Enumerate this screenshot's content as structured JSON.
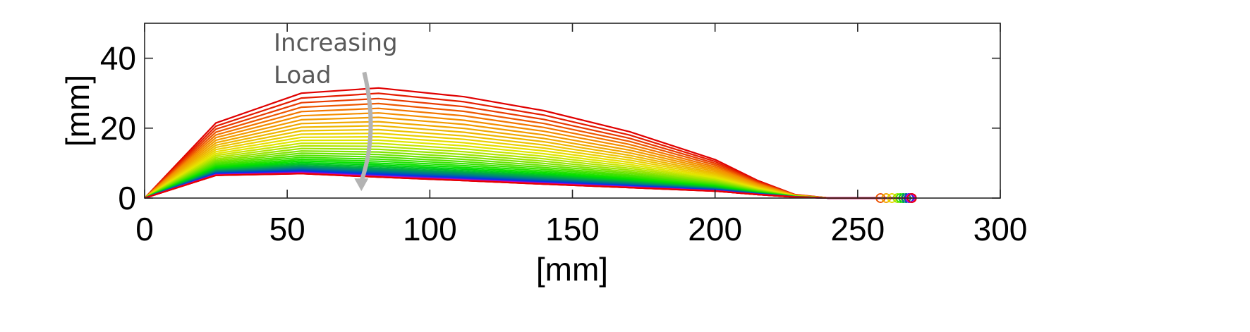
{
  "chart_data": {
    "type": "line",
    "xlabel": "[mm]",
    "ylabel": "[mm]",
    "xlim": [
      0,
      300
    ],
    "ylim": [
      0,
      50
    ],
    "xticks": [
      0,
      50,
      100,
      150,
      200,
      250,
      300
    ],
    "yticks": [
      0,
      20,
      40
    ],
    "grid": false,
    "annotation": {
      "lines": [
        "Increasing",
        "Load"
      ],
      "arrow_from": [
        77,
        36
      ],
      "arrow_to": [
        76,
        2
      ]
    },
    "series_count": 40,
    "x": [
      0,
      25,
      55,
      82,
      112,
      140,
      170,
      200,
      215,
      228,
      240
    ],
    "top_curve": [
      0,
      21.5,
      30,
      31.5,
      29,
      25,
      19,
      11,
      5,
      1,
      0
    ],
    "bottom_curve": [
      0,
      6.5,
      7,
      6,
      5,
      4,
      3,
      2,
      1,
      0.3,
      0
    ],
    "x_end": [
      258,
      260,
      262,
      264,
      265,
      266,
      267,
      268,
      268.5,
      269
    ],
    "colors": {
      "red": "#e00000",
      "orange": "#f58a00",
      "yellow": "#e6e600",
      "green": "#00e000",
      "blue": "#0030f0",
      "magenta": "#e000c0",
      "annotation": "#595959",
      "arrow": "#b3b3b3"
    }
  }
}
